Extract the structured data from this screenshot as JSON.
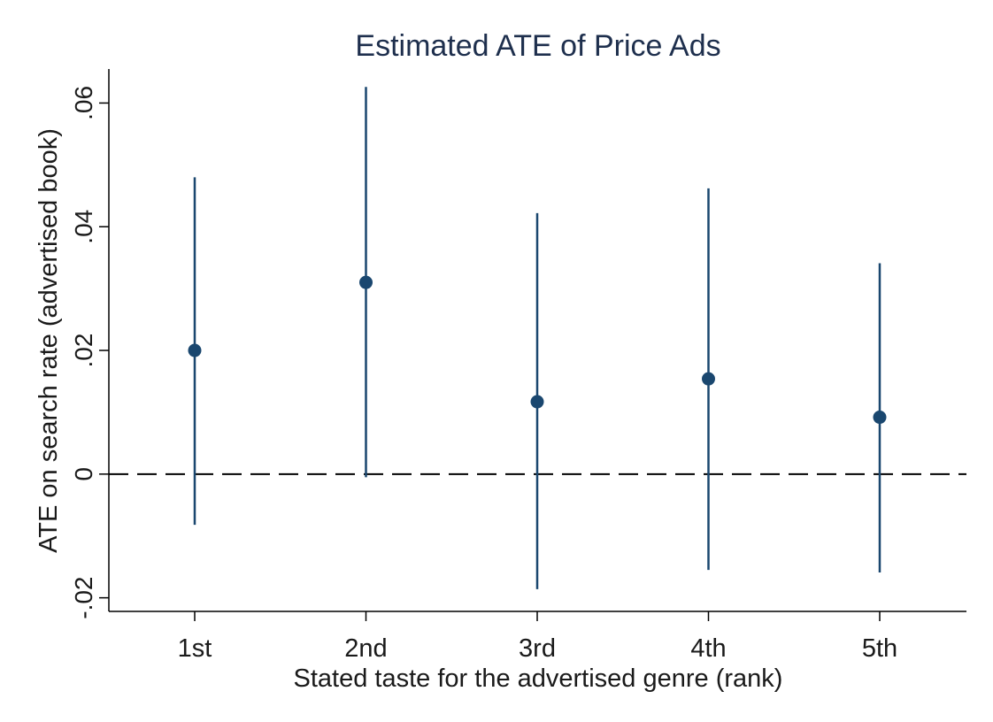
{
  "chart_data": {
    "type": "scatter",
    "title": "Estimated ATE of Price Ads",
    "xlabel": "Stated taste for the advertised genre (rank)",
    "ylabel": "ATE on search rate (advertised book)",
    "categories": [
      "1st",
      "2nd",
      "3rd",
      "4th",
      "5th"
    ],
    "estimates": [
      0.02,
      0.031,
      0.0117,
      0.0154,
      0.0092
    ],
    "ci_lower": [
      -0.0082,
      -0.0005,
      -0.0186,
      -0.0155,
      -0.0159
    ],
    "ci_upper": [
      0.048,
      0.0626,
      0.0422,
      0.0462,
      0.0341
    ],
    "y_ticks": [
      -0.02,
      0,
      0.02,
      0.04,
      0.06
    ],
    "y_tick_labels": [
      "-.02",
      "0",
      ".02",
      ".04",
      ".06"
    ],
    "ylim": [
      -0.0222,
      0.0655
    ],
    "reference_line": {
      "y": 0,
      "style": "dashed"
    },
    "grid": false,
    "colors": {
      "marker": "#1a476f",
      "text": "#1a1a1a",
      "title": "#1e2f4d"
    }
  }
}
